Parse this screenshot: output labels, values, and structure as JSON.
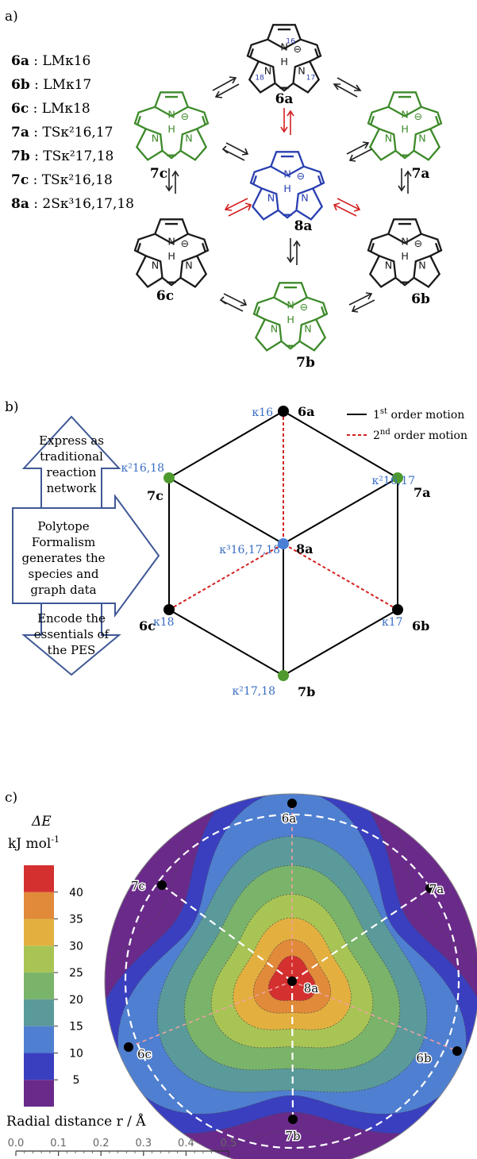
{
  "panels": {
    "a": "a)",
    "b": "b)",
    "c": "c)"
  },
  "legend_a": [
    {
      "id": "6a",
      "text": " : LMκ16"
    },
    {
      "id": "6b",
      "text": " : LMκ17"
    },
    {
      "id": "6c",
      "text": " : LMκ18"
    },
    {
      "id": "7a",
      "text": " : TSκ²16,17"
    },
    {
      "id": "7b",
      "text": " : TSκ²17,18"
    },
    {
      "id": "7c",
      "text": " : TSκ²16,18"
    },
    {
      "id": "8a",
      "text": " : 2Sκ³16,17,18"
    }
  ],
  "molecules": [
    {
      "id": "6a",
      "color": "#1a1a1a",
      "variant": "6a"
    },
    {
      "id": "7a",
      "color": "#3d8a2a",
      "variant": "green"
    },
    {
      "id": "6b",
      "color": "#1a1a1a",
      "variant": "black"
    },
    {
      "id": "7b",
      "color": "#3d8a2a",
      "variant": "green"
    },
    {
      "id": "6c",
      "color": "#1a1a1a",
      "variant": "black"
    },
    {
      "id": "7c",
      "color": "#3d8a2a",
      "variant": "green"
    },
    {
      "id": "8a",
      "color": "#2a3fb0",
      "variant": "blue"
    }
  ],
  "atom_labels": {
    "n16": "16",
    "n17": "17",
    "n18": "18",
    "N": "N",
    "H": "H",
    "minus": "⊖"
  },
  "graph": {
    "legend_first": "1",
    "legend_first_sup": "st",
    "legend_first_rest": " order motion",
    "legend_second": "2",
    "legend_second_sup": "nd",
    "legend_second_rest": " order motion",
    "nodes": [
      {
        "id": "6a",
        "kappa": "κ16",
        "color": "#000000"
      },
      {
        "id": "7a",
        "kappa": "κ²16,17",
        "color": "#4f9a2f"
      },
      {
        "id": "6b",
        "kappa": "κ17",
        "color": "#000000"
      },
      {
        "id": "7b",
        "kappa": "κ²17,18",
        "color": "#4f9a2f"
      },
      {
        "id": "6c",
        "kappa": "κ18",
        "color": "#000000"
      },
      {
        "id": "7c",
        "kappa": "κ²16,18",
        "color": "#4f9a2f"
      },
      {
        "id": "8a",
        "kappa": "κ³16,17,18",
        "color": "#4a7fd6"
      }
    ],
    "colors": {
      "first": "#000000",
      "second": "#d42020",
      "kappa": "#3a6fc4"
    },
    "arrows": [
      {
        "lines": [
          "Express as",
          "traditional",
          "reaction",
          "network"
        ]
      },
      {
        "lines": [
          "Polytope",
          "Formalism",
          "generates the",
          "species and",
          "graph data"
        ]
      },
      {
        "lines": [
          "Encode the",
          "essentials of",
          "the PES"
        ]
      }
    ],
    "arrow_color": "#3f5896"
  },
  "pes": {
    "colorbar_title": "ΔE",
    "colorbar_unit": "kJ mol",
    "colorbar_unit_sup": "-1",
    "levels": [
      0,
      5,
      10,
      15,
      20,
      25,
      30,
      35,
      40,
      45
    ],
    "tick_labels": [
      "5",
      "10",
      "15",
      "20",
      "25",
      "30",
      "35",
      "40"
    ],
    "colors": [
      "#6a2a8a",
      "#3a3fc0",
      "#4f7fd0",
      "#5a9a9a",
      "#7ab36a",
      "#a8c455",
      "#e3b040",
      "#e08a3a",
      "#d43030"
    ],
    "points": [
      "6a",
      "7a",
      "6b",
      "7b",
      "6c",
      "7c",
      "8a"
    ],
    "scale_title": "Radial distance r / Å",
    "scale_ticks": [
      "0.0",
      "0.1",
      "0.2",
      "0.3",
      "0.4",
      "0.5"
    ]
  }
}
